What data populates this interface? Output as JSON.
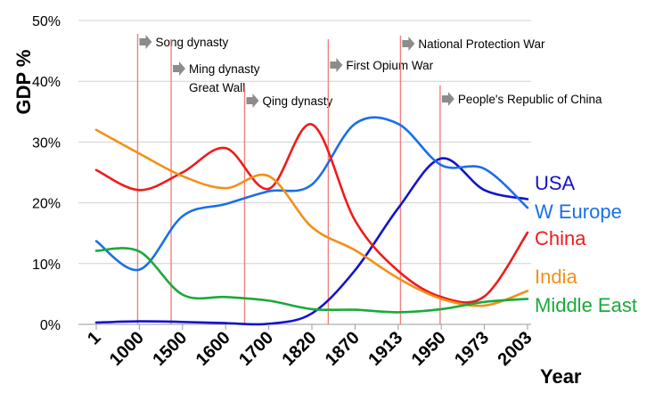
{
  "chart_data": {
    "type": "line",
    "ylabel": "GDP %",
    "xlabel": "Year",
    "ylim": [
      0,
      50
    ],
    "yticks": [
      "0%",
      "10%",
      "20%",
      "30%",
      "40%",
      "50%"
    ],
    "categories": [
      "1",
      "1000",
      "1500",
      "1600",
      "1700",
      "1820",
      "1870",
      "1913",
      "1950",
      "1973",
      "2003"
    ],
    "grid": true,
    "series": [
      {
        "name": "USA",
        "color": "#1414c8",
        "values": [
          0.3,
          0.5,
          0.4,
          0.2,
          0.1,
          1.8,
          8.9,
          19.1,
          27.3,
          22.1,
          20.6
        ]
      },
      {
        "name": "W Europe",
        "color": "#1a6fe8",
        "values": [
          13.7,
          9.0,
          17.8,
          19.8,
          21.9,
          23.0,
          33.0,
          33.0,
          26.2,
          25.6,
          19.2
        ]
      },
      {
        "name": "China",
        "color": "#ee1c1c",
        "values": [
          25.4,
          22.1,
          25.0,
          29.0,
          22.3,
          32.9,
          17.1,
          8.8,
          4.5,
          4.6,
          15.1
        ]
      },
      {
        "name": "India",
        "color": "#f39018",
        "values": [
          32.0,
          28.1,
          24.4,
          22.4,
          24.4,
          16.0,
          12.2,
          7.6,
          4.2,
          3.1,
          5.5
        ]
      },
      {
        "name": "Middle East",
        "color": "#1aaa3a",
        "values": [
          12.1,
          12.0,
          4.9,
          4.5,
          3.9,
          2.5,
          2.4,
          2.0,
          2.5,
          3.7,
          4.2
        ]
      }
    ],
    "events": [
      {
        "label": "Song dynasty",
        "year": 960
      },
      {
        "label": "Ming dynasty",
        "label2": "Great Wall",
        "year": 1368
      },
      {
        "label": "Qing dynasty",
        "year": 1644
      },
      {
        "label": "First Opium War",
        "year": 1839
      },
      {
        "label": "National Protection War",
        "year": 1915
      },
      {
        "label": "People's Republic of China",
        "year": 1949
      }
    ]
  }
}
